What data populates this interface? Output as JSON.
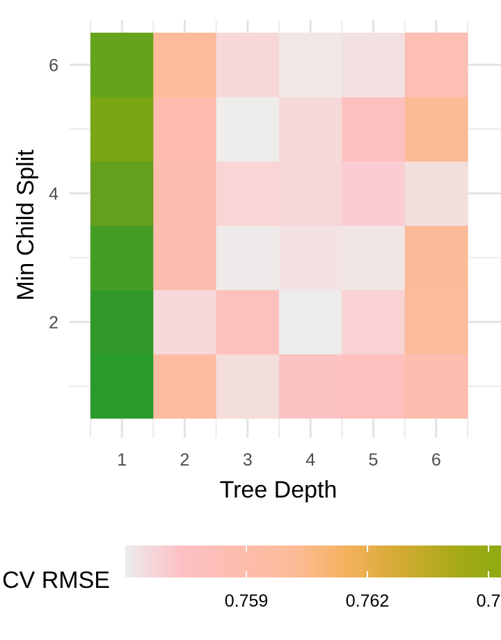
{
  "chart_data": {
    "type": "heatmap",
    "xlabel": "Tree Depth",
    "ylabel": "Min Child Split",
    "x_categories": [
      1,
      2,
      3,
      4,
      5,
      6
    ],
    "y_categories": [
      1,
      2,
      3,
      4,
      5,
      6
    ],
    "x_tick_labels": [
      "1",
      "2",
      "3",
      "4",
      "5",
      "6"
    ],
    "y_tick_labels": [
      "2",
      "4",
      "6"
    ],
    "y_tick_values": [
      2,
      4,
      6
    ],
    "cells": [
      {
        "x": 1,
        "y": 1,
        "color": "#299B2A"
      },
      {
        "x": 2,
        "y": 1,
        "color": "#FDBBA1"
      },
      {
        "x": 3,
        "y": 1,
        "color": "#F4DDDD"
      },
      {
        "x": 4,
        "y": 1,
        "color": "#FCC3C5"
      },
      {
        "x": 5,
        "y": 1,
        "color": "#FDC0BE"
      },
      {
        "x": 6,
        "y": 1,
        "color": "#FDBDAE"
      },
      {
        "x": 1,
        "y": 2,
        "color": "#30992A"
      },
      {
        "x": 2,
        "y": 2,
        "color": "#F6D9D9"
      },
      {
        "x": 3,
        "y": 2,
        "color": "#FDC1BD"
      },
      {
        "x": 4,
        "y": 2,
        "color": "#EDEBEB"
      },
      {
        "x": 5,
        "y": 2,
        "color": "#F9D2D3"
      },
      {
        "x": 6,
        "y": 2,
        "color": "#FCBB9B"
      },
      {
        "x": 1,
        "y": 3,
        "color": "#459D25"
      },
      {
        "x": 2,
        "y": 3,
        "color": "#FDBDAE"
      },
      {
        "x": 3,
        "y": 3,
        "color": "#EEEAEA"
      },
      {
        "x": 4,
        "y": 3,
        "color": "#F4E2E2"
      },
      {
        "x": 5,
        "y": 3,
        "color": "#F2E5E5"
      },
      {
        "x": 6,
        "y": 3,
        "color": "#FCBB98"
      },
      {
        "x": 1,
        "y": 4,
        "color": "#64A01D"
      },
      {
        "x": 2,
        "y": 4,
        "color": "#FDBDAE"
      },
      {
        "x": 3,
        "y": 4,
        "color": "#F9D5D6"
      },
      {
        "x": 4,
        "y": 4,
        "color": "#F7D6D8"
      },
      {
        "x": 5,
        "y": 4,
        "color": "#F9CDD1"
      },
      {
        "x": 6,
        "y": 4,
        "color": "#F4DDDD"
      },
      {
        "x": 1,
        "y": 5,
        "color": "#7AA514"
      },
      {
        "x": 2,
        "y": 5,
        "color": "#FDBCAE"
      },
      {
        "x": 3,
        "y": 5,
        "color": "#EFEDEC"
      },
      {
        "x": 4,
        "y": 5,
        "color": "#F6DAD9"
      },
      {
        "x": 5,
        "y": 5,
        "color": "#FDC0BE"
      },
      {
        "x": 6,
        "y": 5,
        "color": "#FCBA96"
      },
      {
        "x": 1,
        "y": 6,
        "color": "#66A31C"
      },
      {
        "x": 2,
        "y": 6,
        "color": "#FDBB9B"
      },
      {
        "x": 3,
        "y": 6,
        "color": "#F7D8D9"
      },
      {
        "x": 4,
        "y": 6,
        "color": "#F2E7E7"
      },
      {
        "x": 5,
        "y": 6,
        "color": "#F3E1E2"
      },
      {
        "x": 6,
        "y": 6,
        "color": "#FDBFB4"
      }
    ],
    "grid": true,
    "legend": {
      "title": "CV RMSE",
      "position": "bottom",
      "labels": [
        "0.759",
        "0.762",
        "0.7"
      ],
      "colors": [
        "#ECECEC",
        "#FCC0C5",
        "#FDBDAE",
        "#FCBB99",
        "#F4B15C",
        "#D1AA30",
        "#A3AA16",
        "#89AA10"
      ]
    }
  }
}
